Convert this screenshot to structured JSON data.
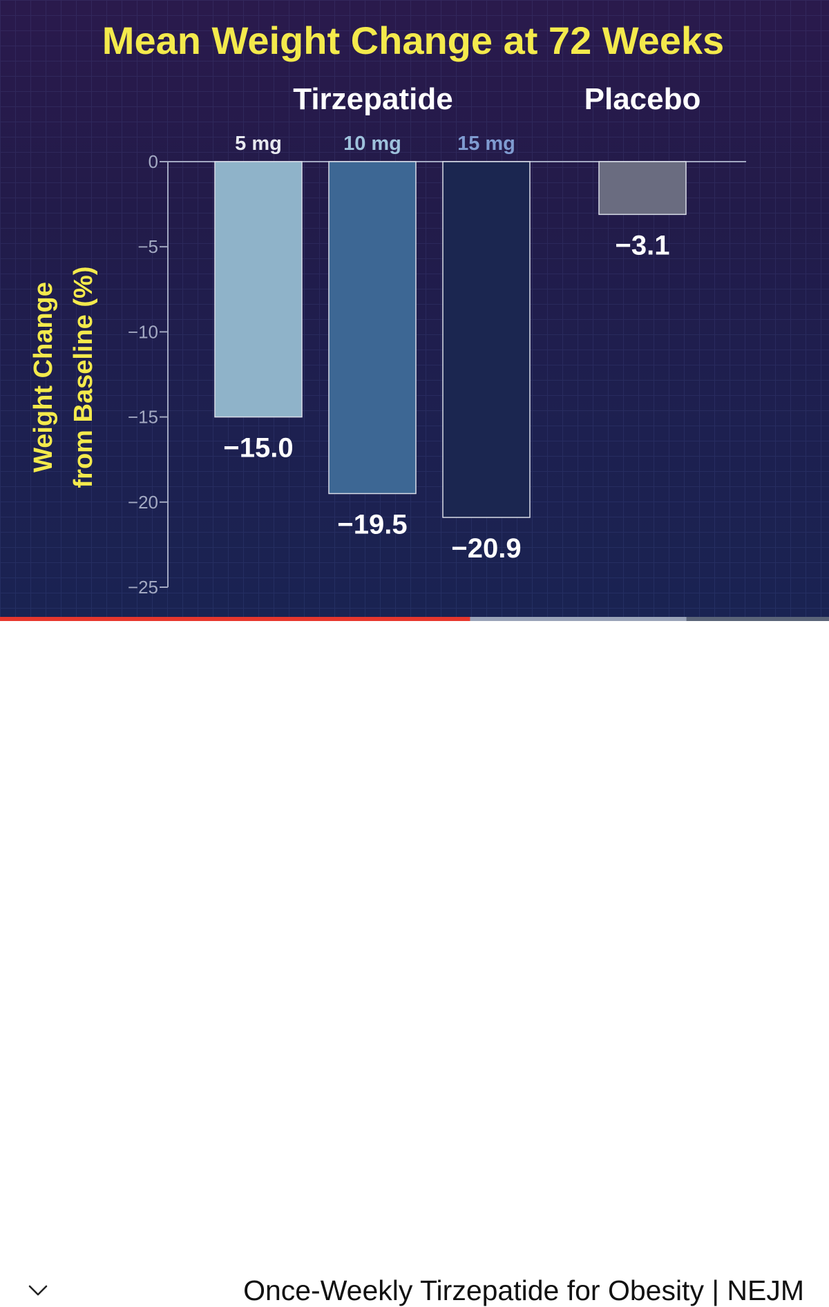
{
  "colors": {
    "title_yellow": "#f4ea4c",
    "group_label": "#ffffff",
    "axis_gray": "#a3a9c2",
    "progress_played": "#e8372d",
    "progress_buffered": "#9aa3b8",
    "progress_remaining": "#5b6478"
  },
  "video": {
    "title": "Once-Weekly Tirzepatide for Obesity | NEJM",
    "progress_played": 0.567,
    "progress_buffered": 0.828,
    "collapse_icon": "chevron-down-icon"
  },
  "chart_data": {
    "type": "bar",
    "title": "Mean Weight Change at 72 Weeks",
    "ylabel": "Weight Change from Baseline (%)",
    "ylabel_lines": [
      "Weight Change",
      "from Baseline (%)"
    ],
    "ylim": [
      -25,
      0
    ],
    "yticks": [
      0,
      -5,
      -10,
      -15,
      -20,
      -25
    ],
    "ytick_labels": [
      "0",
      "−5",
      "−10",
      "−15",
      "−20",
      "−25"
    ],
    "groups": [
      {
        "name": "Tirzepatide",
        "members": [
          "5 mg",
          "10 mg",
          "15 mg"
        ]
      },
      {
        "name": "Placebo",
        "members": [
          "Placebo"
        ]
      }
    ],
    "bars": [
      {
        "category": "5 mg",
        "value": -15.0,
        "label": "−15.0",
        "dose_label": "5 mg",
        "color": "#8fb3c9",
        "dose_color": "#e8eaf0"
      },
      {
        "category": "10 mg",
        "value": -19.5,
        "label": "−19.5",
        "dose_label": "10 mg",
        "color": "#3d6794",
        "dose_color": "#9ec2dc"
      },
      {
        "category": "15 mg",
        "value": -20.9,
        "label": "−20.9",
        "dose_label": "15 mg",
        "color": "#1b2650",
        "dose_color": "#7f9bd0"
      },
      {
        "category": "Placebo",
        "value": -3.1,
        "label": "−3.1",
        "dose_label": "",
        "color": "#6a6c80",
        "dose_color": "#ffffff"
      }
    ]
  }
}
